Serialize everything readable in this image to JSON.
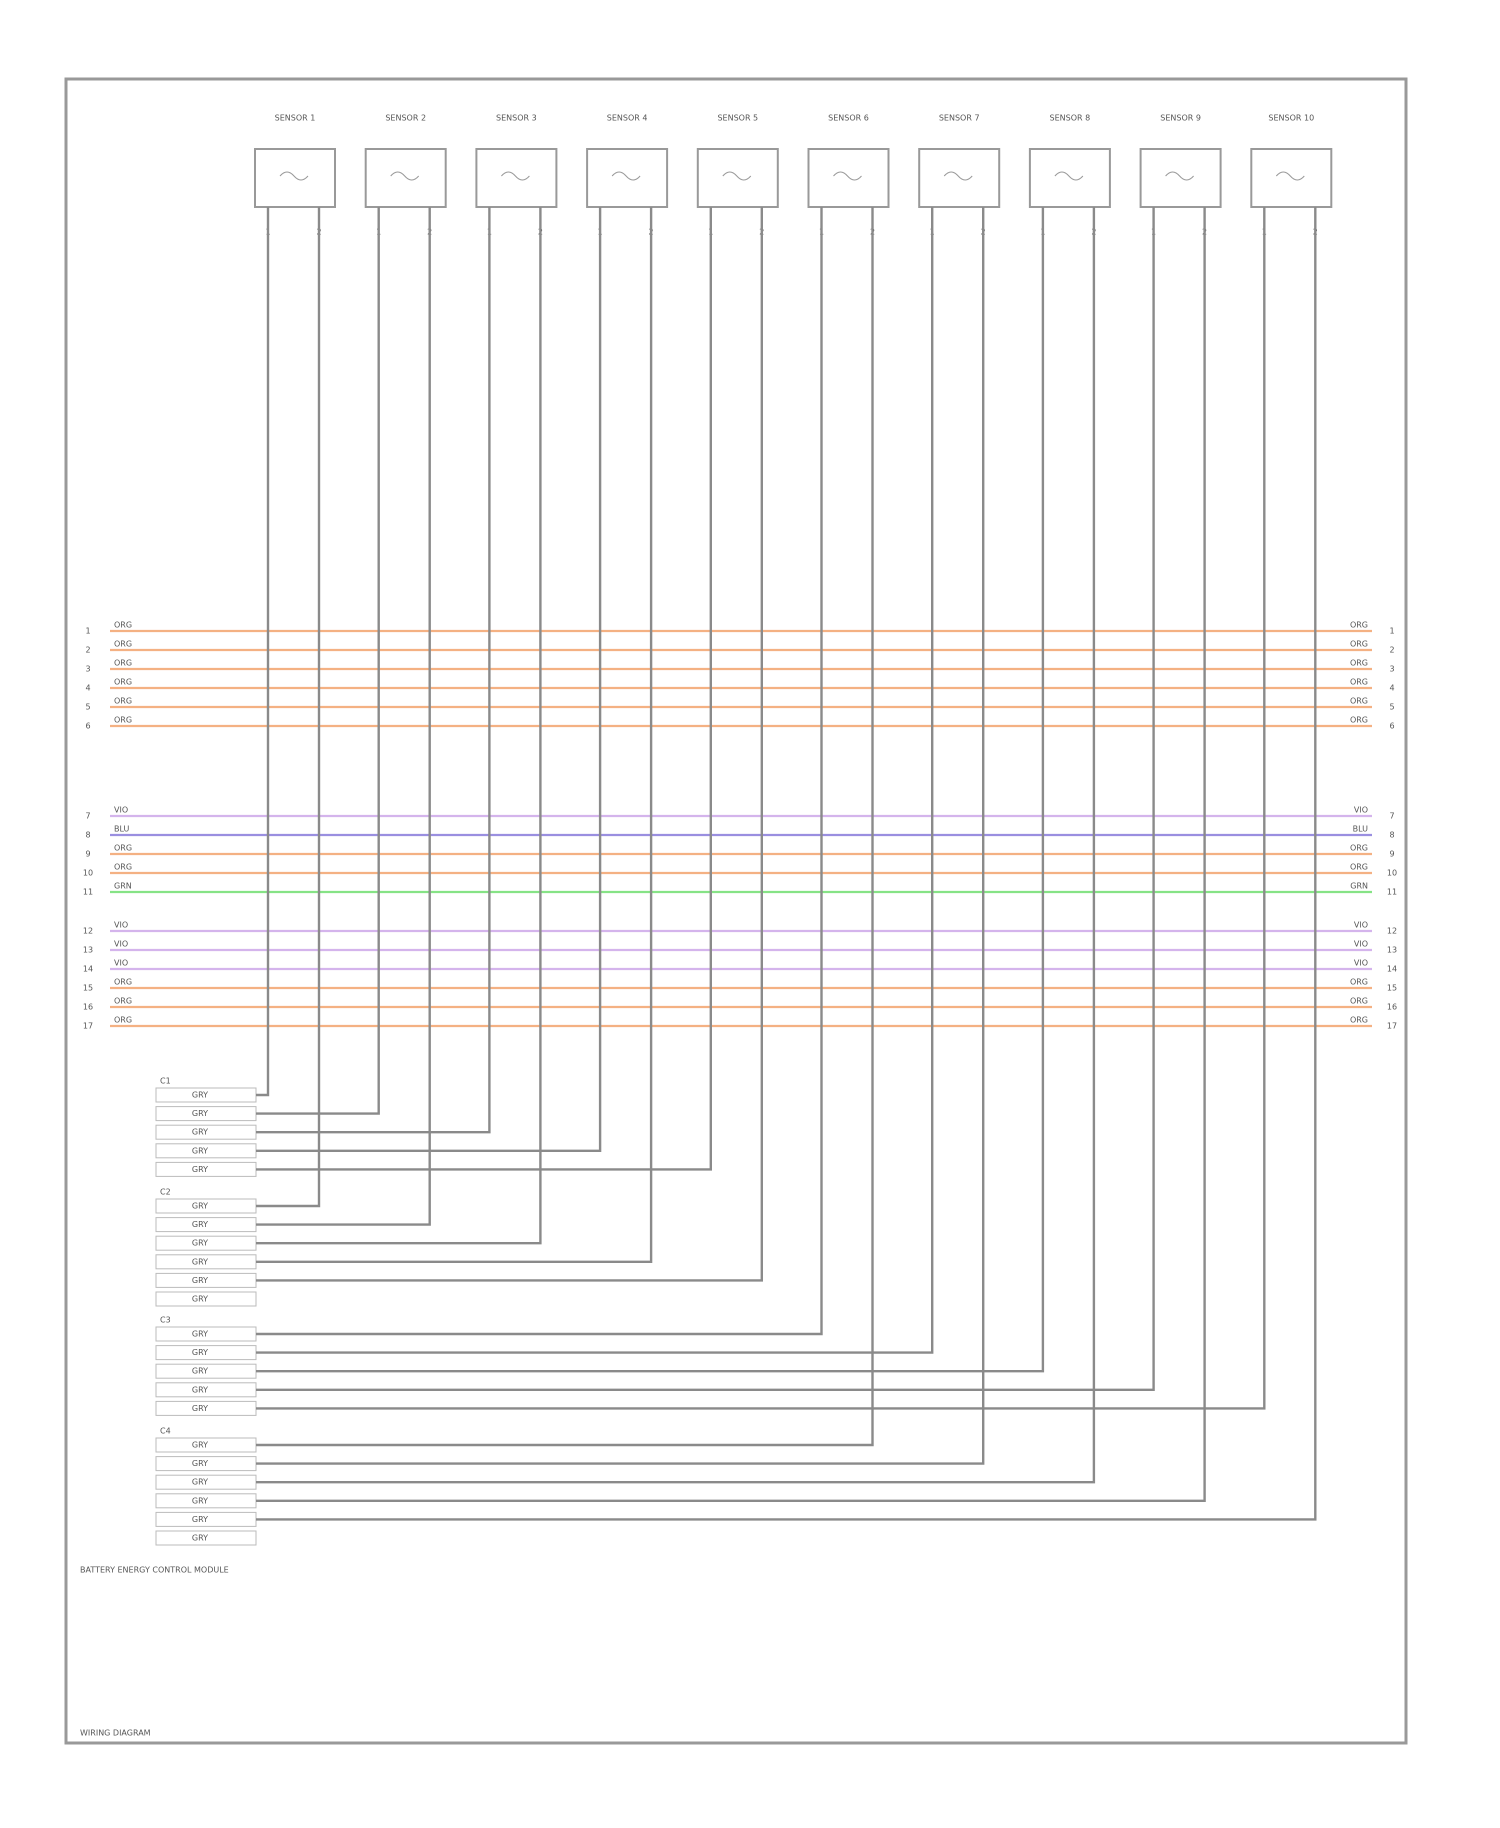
{
  "sensors": [
    {
      "name": "SENSOR 1",
      "pins": [
        "1",
        "2"
      ]
    },
    {
      "name": "SENSOR 2",
      "pins": [
        "1",
        "2"
      ]
    },
    {
      "name": "SENSOR 3",
      "pins": [
        "1",
        "2"
      ]
    },
    {
      "name": "SENSOR 4",
      "pins": [
        "1",
        "2"
      ]
    },
    {
      "name": "SENSOR 5",
      "pins": [
        "1",
        "2"
      ]
    },
    {
      "name": "SENSOR 6",
      "pins": [
        "1",
        "2"
      ]
    },
    {
      "name": "SENSOR 7",
      "pins": [
        "1",
        "2"
      ]
    },
    {
      "name": "SENSOR 8",
      "pins": [
        "1",
        "2"
      ]
    },
    {
      "name": "SENSOR 9",
      "pins": [
        "1",
        "2"
      ]
    },
    {
      "name": "SENSOR 10",
      "pins": [
        "1",
        "2"
      ]
    }
  ],
  "bus": [
    {
      "pin": "1",
      "wire": "ORG",
      "color": "#f4b183"
    },
    {
      "pin": "2",
      "wire": "ORG",
      "color": "#f4b183"
    },
    {
      "pin": "3",
      "wire": "ORG",
      "color": "#f4b183"
    },
    {
      "pin": "4",
      "wire": "ORG",
      "color": "#f4b183"
    },
    {
      "pin": "5",
      "wire": "ORG",
      "color": "#f4b183"
    },
    {
      "pin": "6",
      "wire": "ORG",
      "color": "#f4b183"
    },
    {
      "pin": "7",
      "wire": "VIO",
      "color": "#d4b4ec"
    },
    {
      "pin": "8",
      "wire": "BLU",
      "color": "#9a8fe0"
    },
    {
      "pin": "9",
      "wire": "ORG",
      "color": "#f4b183"
    },
    {
      "pin": "10",
      "wire": "ORG",
      "color": "#f4b183"
    },
    {
      "pin": "11",
      "wire": "GRN",
      "color": "#86e386"
    },
    {
      "pin": "12",
      "wire": "VIO",
      "color": "#d4b4ec"
    },
    {
      "pin": "13",
      "wire": "VIO",
      "color": "#d4b4ec"
    },
    {
      "pin": "14",
      "wire": "VIO",
      "color": "#d4b4ec"
    },
    {
      "pin": "15",
      "wire": "ORG",
      "color": "#f4b183"
    },
    {
      "pin": "16",
      "wire": "ORG",
      "color": "#f4b183"
    },
    {
      "pin": "17",
      "wire": "ORG",
      "color": "#f4b183"
    }
  ],
  "connectors": [
    {
      "name": "C1",
      "rows": [
        "GRY",
        "GRY",
        "GRY",
        "GRY",
        "GRY"
      ]
    },
    {
      "name": "C2",
      "rows": [
        "GRY",
        "GRY",
        "GRY",
        "GRY",
        "GRY",
        "GRY"
      ]
    },
    {
      "name": "C3",
      "rows": [
        "GRY",
        "GRY",
        "GRY",
        "GRY",
        "GRY"
      ]
    },
    {
      "name": "C4",
      "rows": [
        "GRY",
        "GRY",
        "GRY",
        "GRY",
        "GRY",
        "GRY"
      ]
    }
  ],
  "module": "BATTERY ENERGY CONTROL MODULE",
  "footer": "WIRING DIAGRAM"
}
